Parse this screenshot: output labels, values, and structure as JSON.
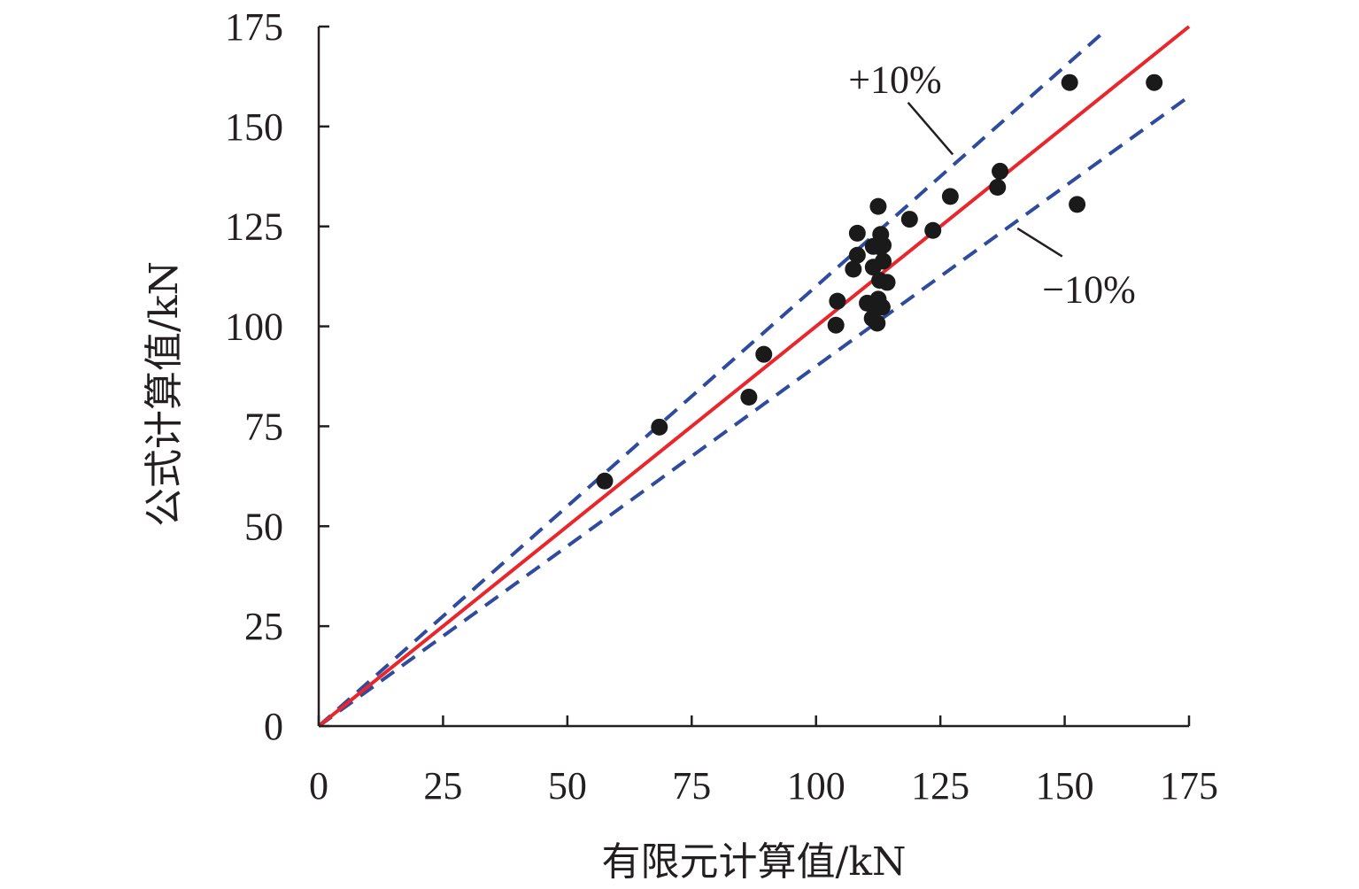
{
  "chart_data": {
    "type": "scatter",
    "xlabel": "有限元计算值/kN",
    "ylabel": "公式计算值/kN",
    "xlim": [
      0,
      175
    ],
    "ylim": [
      0,
      175
    ],
    "xticks": [
      "0",
      "25",
      "50",
      "75",
      "100",
      "125",
      "150",
      "175"
    ],
    "yticks": [
      "0",
      "25",
      "50",
      "75",
      "100",
      "125",
      "150",
      "175"
    ],
    "grid": false,
    "points": [
      [
        57.5,
        61.3
      ],
      [
        68.5,
        74.8
      ],
      [
        86.5,
        82.3
      ],
      [
        89.5,
        93.0
      ],
      [
        104.0,
        100.3
      ],
      [
        104.3,
        106.3
      ],
      [
        107.5,
        114.3
      ],
      [
        108.3,
        117.8
      ],
      [
        108.3,
        123.3
      ],
      [
        110.3,
        105.8
      ],
      [
        111.3,
        102.0
      ],
      [
        111.5,
        120.0
      ],
      [
        111.5,
        114.8
      ],
      [
        112.0,
        105.3
      ],
      [
        112.3,
        100.8
      ],
      [
        112.5,
        106.8
      ],
      [
        112.5,
        130.0
      ],
      [
        112.8,
        111.5
      ],
      [
        113.0,
        123.0
      ],
      [
        113.0,
        119.8
      ],
      [
        113.3,
        104.8
      ],
      [
        113.5,
        120.3
      ],
      [
        113.5,
        116.3
      ],
      [
        114.3,
        111.0
      ],
      [
        118.8,
        126.8
      ],
      [
        123.5,
        124.0
      ],
      [
        127.0,
        132.5
      ],
      [
        136.5,
        134.8
      ],
      [
        137.0,
        138.8
      ],
      [
        151.0,
        161.0
      ],
      [
        152.5,
        130.5
      ],
      [
        168.0,
        161.0
      ]
    ],
    "lines": [
      {
        "name": "1:1",
        "slope": 1.0,
        "color": "#e8262b",
        "dash": false,
        "x_end": 175
      },
      {
        "name": "+10%",
        "slope": 1.1,
        "color": "#2e4b9e",
        "dash": true,
        "x_end": 158
      },
      {
        "name": "−10%",
        "slope": 0.9,
        "color": "#2e4b9e",
        "dash": true,
        "x_end": 175
      }
    ],
    "annotations": [
      {
        "text": "+10%",
        "pointer_from": [
          118.5,
          156.0
        ],
        "pointer_to": [
          127.5,
          143.0
        ]
      },
      {
        "text": "−10%",
        "pointer_from": [
          140.5,
          124.5
        ],
        "pointer_to": [
          149.5,
          117.5
        ]
      }
    ],
    "colors": {
      "axis": "#231f20",
      "point": "#1a1a1a",
      "fit": "#e8262b",
      "band": "#2e4b9e"
    }
  }
}
